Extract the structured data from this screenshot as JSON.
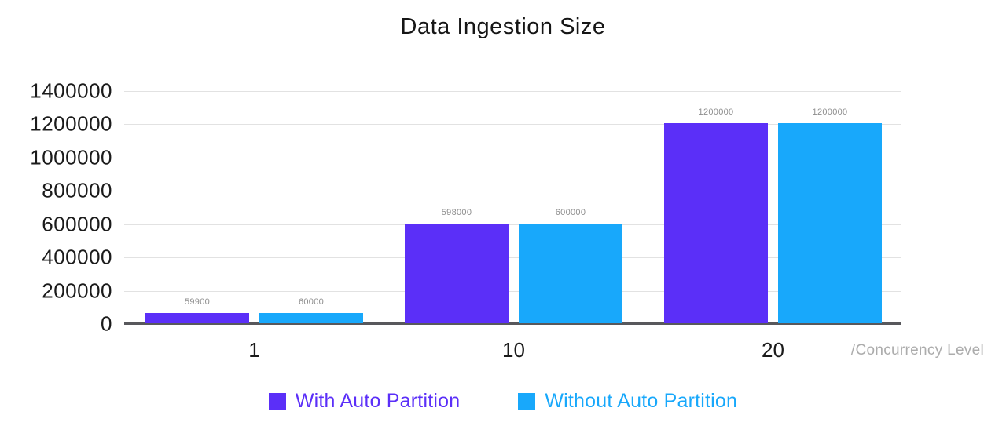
{
  "chart_data": {
    "type": "bar",
    "title": "Data Ingestion Size",
    "categories": [
      "1",
      "10",
      "20"
    ],
    "series": [
      {
        "name": "With Auto Partition",
        "color": "#5b2ff8",
        "values": [
          59900,
          598000,
          1200000
        ]
      },
      {
        "name": "Without Auto Partition",
        "color": "#18a8fb",
        "values": [
          60000,
          600000,
          1200000
        ]
      }
    ],
    "value_labels": [
      "59900",
      "60000",
      "598000",
      "600000",
      "1200000",
      "1200000"
    ],
    "xlabel": "/Concurrency Level",
    "ylabel": "",
    "ylim": [
      0,
      1400000
    ],
    "ytick_step": 200000,
    "yticks": [
      "1400000",
      "1200000",
      "1000000",
      "800000",
      "600000",
      "400000",
      "200000",
      "0"
    ],
    "grid": true,
    "legend_position": "bottom",
    "colors": {
      "grid": "#e2e2e2",
      "axis": "#58585c",
      "value_label": "#8e8e8e",
      "tick_label": "#1b1b1b",
      "unit_label": "#acacac"
    }
  }
}
